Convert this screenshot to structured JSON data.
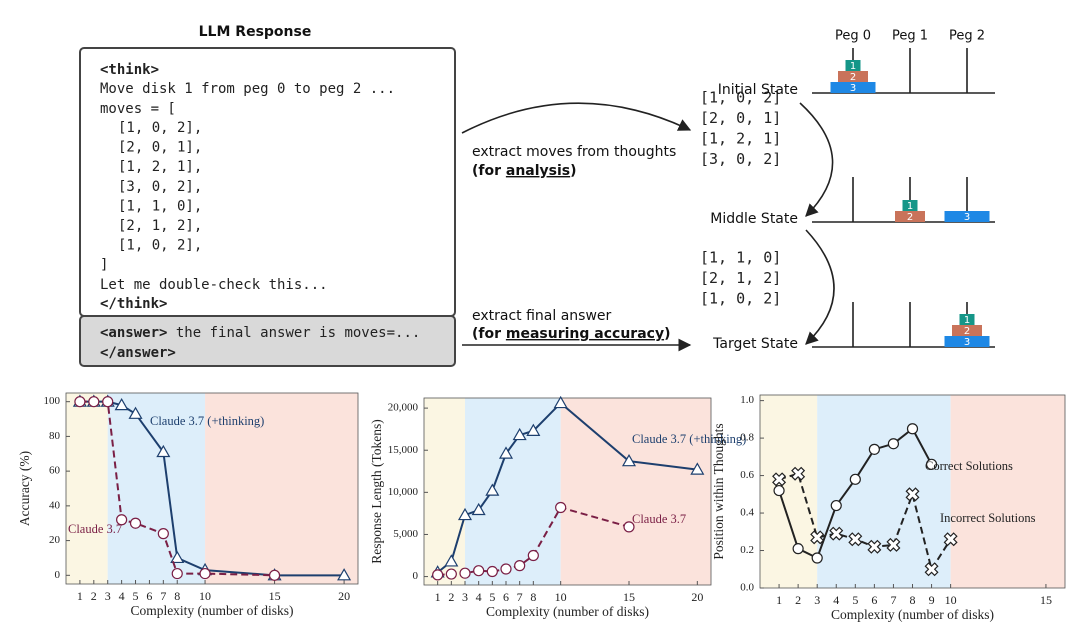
{
  "response": {
    "title": "LLM Response",
    "think_open": "<think>",
    "lines": [
      "Move disk 1 from peg 0 to peg 2 ...",
      "moves = ["
    ],
    "moves": [
      {
        "text": "[1, 0, 2],",
        "color": "#2ca02c"
      },
      {
        "text": "[2, 0, 1],",
        "color": "#d6336c"
      },
      {
        "text": "[1, 2, 1],",
        "color": "#1f6fd6"
      },
      {
        "text": "[3, 0, 2],",
        "color": "#b8590b"
      },
      {
        "text": "[1, 1, 0],",
        "color": "#1e9ad6"
      },
      {
        "text": "[2, 1, 2],",
        "color": "#8e44e0"
      },
      {
        "text": "[1, 0, 2],",
        "color": "#b8900b"
      }
    ],
    "moves_close": "]",
    "after": "Let me double-check this...",
    "think_close": "</think>",
    "answer_open": "<answer>",
    "answer_text": " the final answer is moves=...",
    "answer_close": "</answer>"
  },
  "extraction": [
    {
      "line1": "extract moves  from thoughts",
      "prefix": "(for ",
      "emphasis": "analysis",
      "suffix": ")"
    },
    {
      "line1": "extract final answer",
      "prefix": "(for ",
      "emphasis": "measuring accuracy",
      "suffix": ")"
    }
  ],
  "pegs": [
    "Peg 0",
    "Peg 1",
    "Peg 2"
  ],
  "states": [
    {
      "name": "Initial State",
      "pegs": [
        [
          "3",
          "2",
          "1"
        ],
        [],
        []
      ]
    },
    {
      "name": "Middle State",
      "pegs": [
        [],
        [
          "2",
          "1"
        ],
        [
          "3"
        ]
      ]
    },
    {
      "name": "Target State",
      "pegs": [
        [],
        [],
        [
          "3",
          "2",
          "1"
        ]
      ]
    }
  ],
  "disk_colors": {
    "1": "#159688",
    "2": "#c9735a",
    "3": "#1e88e5"
  },
  "move_groups": [
    [
      {
        "text": "[1, 0, 2]",
        "color": "#2ca02c"
      },
      {
        "text": "[2, 0, 1]",
        "color": "#d6336c"
      },
      {
        "text": "[1, 2, 1]",
        "color": "#1f6fd6"
      },
      {
        "text": "[3, 0, 2]",
        "color": "#b8590b"
      }
    ],
    [
      {
        "text": "[1, 1, 0]",
        "color": "#1e9ad6"
      },
      {
        "text": "[2, 1, 2]",
        "color": "#8e44e0"
      },
      {
        "text": "[1, 0, 2]",
        "color": "#b8900b"
      }
    ]
  ],
  "chart_data": [
    {
      "type": "line",
      "xlabel": "Complexity (number of disks)",
      "ylabel": "Accuracy (%)",
      "xlim": [
        0,
        21
      ],
      "ylim": [
        -5,
        105
      ],
      "xticks": [
        1,
        2,
        3,
        4,
        5,
        6,
        7,
        8,
        10,
        15,
        20
      ],
      "yticks": [
        0,
        20,
        40,
        60,
        80,
        100
      ],
      "regions": [
        {
          "from": 0,
          "to": 3,
          "color": "#fbf6e3"
        },
        {
          "from": 3,
          "to": 10,
          "color": "#ddeefa"
        },
        {
          "from": 10,
          "to": 21,
          "color": "#fbe3dc"
        }
      ],
      "series": [
        {
          "name": "Claude 3.7 (+thinking)",
          "color": "#1d3f6e",
          "marker": "triangle",
          "dashed": false,
          "x": [
            1,
            2,
            3,
            4,
            5,
            7,
            8,
            10,
            15,
            20
          ],
          "values": [
            100,
            100,
            100,
            98,
            93,
            71,
            10,
            3,
            0,
            0
          ]
        },
        {
          "name": "Claude 3.7",
          "color": "#7a1f45",
          "marker": "circle",
          "dashed": true,
          "x": [
            1,
            2,
            3,
            4,
            5,
            7,
            8,
            10,
            15
          ],
          "values": [
            100,
            100,
            100,
            32,
            30,
            24,
            1,
            1,
            0
          ]
        }
      ]
    },
    {
      "type": "line",
      "xlabel": "Complexity (number of disks)",
      "ylabel": "Response Length (Tokens)",
      "xlim": [
        0,
        21
      ],
      "ylim": [
        -1000,
        21200
      ],
      "xticks": [
        1,
        2,
        3,
        4,
        5,
        6,
        7,
        8,
        10,
        15,
        20
      ],
      "yticks": [
        0,
        {
          "value": 5000,
          "label": "5,000"
        },
        {
          "value": 10000,
          "label": "10,000"
        },
        {
          "value": 15000,
          "label": "15,000"
        },
        {
          "value": 20000,
          "label": "20,000"
        }
      ],
      "regions": [
        {
          "from": 0,
          "to": 3,
          "color": "#fbf6e3"
        },
        {
          "from": 3,
          "to": 10,
          "color": "#ddeefa"
        },
        {
          "from": 10,
          "to": 21,
          "color": "#fbe3dc"
        }
      ],
      "series": [
        {
          "name": "Claude 3.7 (+thinking)",
          "color": "#1d3f6e",
          "marker": "triangle",
          "dashed": false,
          "x": [
            1,
            2,
            3,
            4,
            5,
            6,
            7,
            8,
            10,
            15,
            20
          ],
          "values": [
            500,
            1800,
            7300,
            7900,
            10200,
            14600,
            16800,
            17300,
            20600,
            13700,
            12700
          ]
        },
        {
          "name": "Claude 3.7",
          "color": "#7a1f45",
          "marker": "circle",
          "dashed": true,
          "x": [
            1,
            2,
            3,
            4,
            5,
            6,
            7,
            8,
            10,
            15
          ],
          "values": [
            200,
            300,
            400,
            700,
            600,
            900,
            1300,
            2500,
            8200,
            5900
          ]
        }
      ]
    },
    {
      "type": "line",
      "xlabel": "Complexity (number of disks)",
      "ylabel": "Position within Thoughts",
      "xlim": [
        0,
        16
      ],
      "ylim": [
        0,
        1.03
      ],
      "xticks": [
        1,
        2,
        3,
        4,
        5,
        6,
        7,
        8,
        9,
        10,
        15
      ],
      "yticks": [
        {
          "value": 0,
          "label": "0.0"
        },
        0.2,
        0.4,
        0.6,
        0.8,
        {
          "value": 1,
          "label": "1.0"
        }
      ],
      "regions": [
        {
          "from": 0,
          "to": 3,
          "color": "#fbf6e3"
        },
        {
          "from": 3,
          "to": 10,
          "color": "#ddeefa"
        },
        {
          "from": 10,
          "to": 16,
          "color": "#fbe3dc"
        }
      ],
      "series": [
        {
          "name": "Correct Solutions",
          "color": "#222222",
          "marker": "circle",
          "dashed": false,
          "x": [
            1,
            2,
            3,
            4,
            5,
            6,
            7,
            8,
            9
          ],
          "values": [
            0.52,
            0.21,
            0.16,
            0.44,
            0.58,
            0.74,
            0.77,
            0.85,
            0.66
          ]
        },
        {
          "name": "Incorrect Solutions",
          "color": "#222222",
          "marker": "x",
          "dashed": true,
          "x": [
            1,
            2,
            3,
            4,
            5,
            6,
            7,
            8,
            9,
            10
          ],
          "values": [
            0.58,
            0.61,
            0.27,
            0.29,
            0.26,
            0.22,
            0.23,
            0.5,
            0.1,
            0.26
          ]
        }
      ]
    }
  ]
}
